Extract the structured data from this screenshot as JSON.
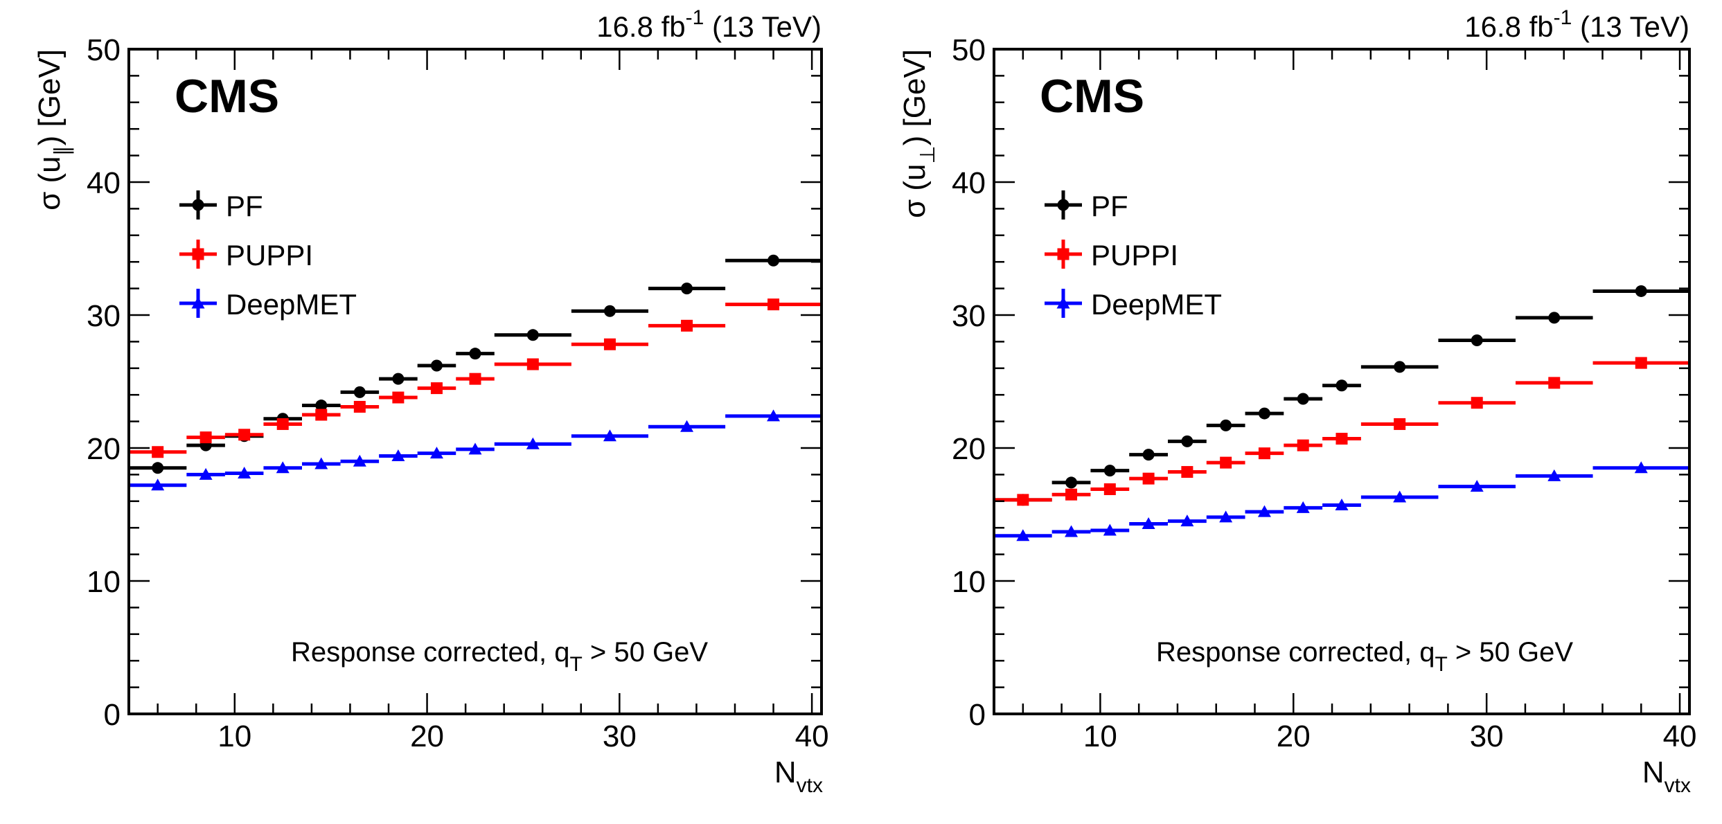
{
  "chart_data": [
    {
      "type": "scatter",
      "panel": "left",
      "title": "",
      "experiment_label": "CMS",
      "lumi_label": {
        "main": "16.8 fb",
        "superscript": "-1",
        "suffix": " (13 TeV)"
      },
      "annotation": {
        "main": "Response corrected, q",
        "subscript": "T",
        "suffix": " > 50 GeV"
      },
      "xlabel": {
        "main": "N",
        "subscript": "vtx"
      },
      "ylabel": {
        "prefix": "σ (u",
        "subscript": "∥",
        "suffix": ") [GeV]"
      },
      "xlim": [
        4.5,
        40.5
      ],
      "ylim": [
        0,
        50
      ],
      "x_ticks": [
        10,
        20,
        30,
        40
      ],
      "x_tick_labels": [
        "10",
        "20",
        "30",
        "40"
      ],
      "y_ticks": [
        0,
        10,
        20,
        30,
        40,
        50
      ],
      "y_tick_labels": [
        "0",
        "10",
        "20",
        "30",
        "40",
        "50"
      ],
      "grid": false,
      "legend_position": "top-left",
      "bin_edges": [
        4.5,
        7.5,
        9.5,
        11.5,
        13.5,
        15.5,
        17.5,
        19.5,
        21.5,
        23.5,
        27.5,
        31.5,
        35.5,
        40.5
      ],
      "x": [
        6,
        8.5,
        10.5,
        12.5,
        14.5,
        16.5,
        18.5,
        20.5,
        22.5,
        25.5,
        29.5,
        33.5,
        38
      ],
      "series": [
        {
          "name": "PF",
          "color": "#000000",
          "marker": "circle",
          "values": [
            18.5,
            20.2,
            20.9,
            22.2,
            23.2,
            24.2,
            25.2,
            26.2,
            27.1,
            28.5,
            30.3,
            32.0,
            34.1
          ]
        },
        {
          "name": "PUPPI",
          "color": "#ff0000",
          "marker": "square",
          "values": [
            19.7,
            20.8,
            21.0,
            21.8,
            22.5,
            23.1,
            23.8,
            24.5,
            25.2,
            26.3,
            27.8,
            29.2,
            30.8
          ]
        },
        {
          "name": "DeepMET",
          "color": "#0000ff",
          "marker": "triangle",
          "values": [
            17.2,
            18.0,
            18.1,
            18.5,
            18.8,
            19.0,
            19.4,
            19.6,
            19.9,
            20.3,
            20.9,
            21.6,
            22.4
          ]
        }
      ]
    },
    {
      "type": "scatter",
      "panel": "right",
      "title": "",
      "experiment_label": "CMS",
      "lumi_label": {
        "main": "16.8 fb",
        "superscript": "-1",
        "suffix": " (13 TeV)"
      },
      "annotation": {
        "main": "Response corrected, q",
        "subscript": "T",
        "suffix": " > 50 GeV"
      },
      "xlabel": {
        "main": "N",
        "subscript": "vtx"
      },
      "ylabel": {
        "prefix": "σ (u",
        "subscript": "⊥",
        "suffix": ") [GeV]"
      },
      "xlim": [
        4.5,
        40.5
      ],
      "ylim": [
        0,
        50
      ],
      "x_ticks": [
        10,
        20,
        30,
        40
      ],
      "x_tick_labels": [
        "10",
        "20",
        "30",
        "40"
      ],
      "y_ticks": [
        0,
        10,
        20,
        30,
        40,
        50
      ],
      "y_tick_labels": [
        "0",
        "10",
        "20",
        "30",
        "40",
        "50"
      ],
      "grid": false,
      "legend_position": "top-left",
      "bin_edges": [
        4.5,
        7.5,
        9.5,
        11.5,
        13.5,
        15.5,
        17.5,
        19.5,
        21.5,
        23.5,
        27.5,
        31.5,
        35.5,
        40.5
      ],
      "x": [
        6,
        8.5,
        10.5,
        12.5,
        14.5,
        16.5,
        18.5,
        20.5,
        22.5,
        25.5,
        29.5,
        33.5,
        38
      ],
      "series": [
        {
          "name": "PF",
          "color": "#000000",
          "marker": "circle",
          "values": [
            16.1,
            17.4,
            18.3,
            19.5,
            20.5,
            21.7,
            22.6,
            23.7,
            24.7,
            26.1,
            28.1,
            29.8,
            31.8
          ]
        },
        {
          "name": "PUPPI",
          "color": "#ff0000",
          "marker": "square",
          "values": [
            16.1,
            16.5,
            16.9,
            17.7,
            18.2,
            18.9,
            19.6,
            20.2,
            20.7,
            21.8,
            23.4,
            24.9,
            26.4
          ]
        },
        {
          "name": "DeepMET",
          "color": "#0000ff",
          "marker": "triangle",
          "values": [
            13.4,
            13.7,
            13.8,
            14.3,
            14.5,
            14.8,
            15.2,
            15.5,
            15.7,
            16.3,
            17.1,
            17.9,
            18.5
          ]
        }
      ]
    }
  ]
}
